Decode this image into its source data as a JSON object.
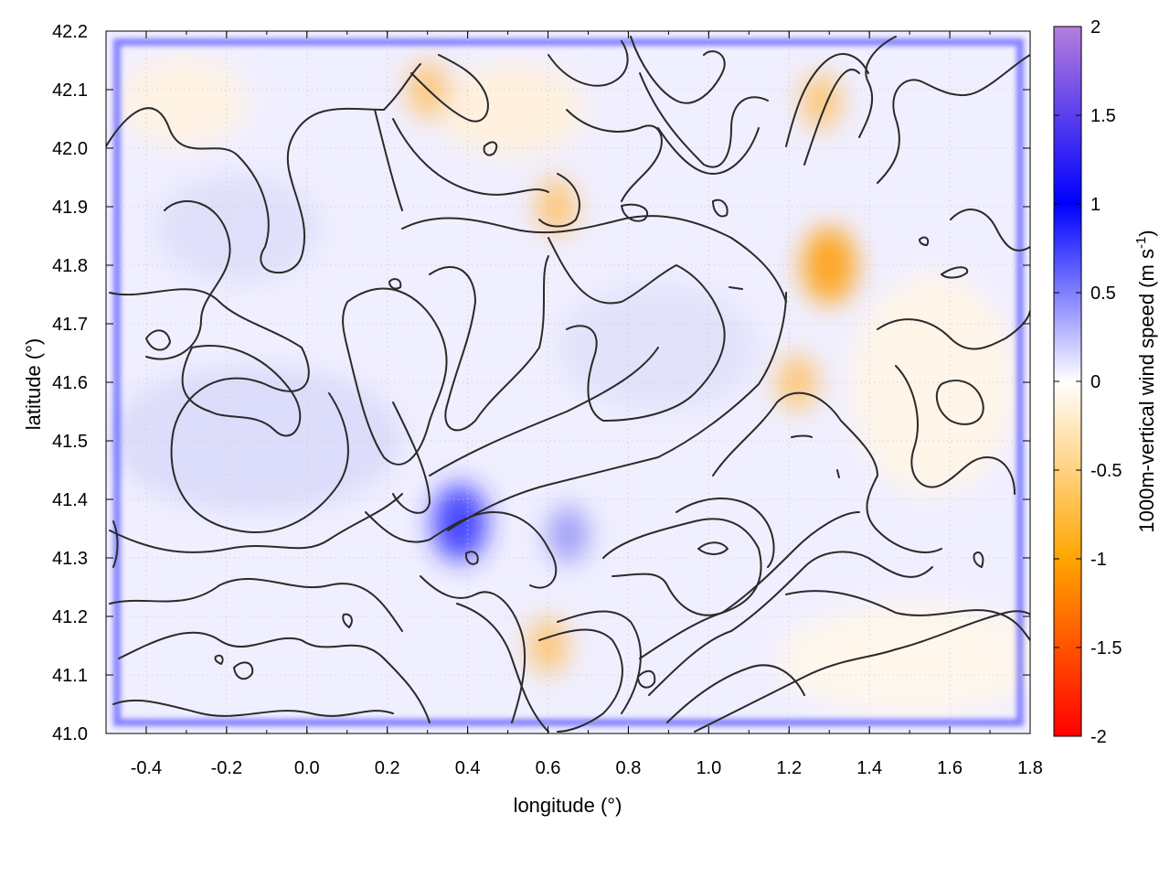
{
  "chart_data": {
    "type": "heatmap",
    "title": "",
    "xlabel": "longitude (°)",
    "ylabel": "latitude (°)",
    "colorbar_label": "1000m-vertical wind speed (m s-1)",
    "xlim": [
      -0.5,
      1.8
    ],
    "ylim": [
      41.0,
      42.2
    ],
    "x_ticks": [
      -0.4,
      -0.2,
      0.0,
      0.2,
      0.4,
      0.6,
      0.8,
      1.0,
      1.2,
      1.4,
      1.6,
      1.8
    ],
    "x_tick_labels": [
      "-0.4",
      "-0.2",
      "0.0",
      "0.2",
      "0.4",
      "0.6",
      "0.8",
      "1.0",
      "1.2",
      "1.4",
      "1.6",
      "1.8"
    ],
    "y_ticks": [
      41.0,
      41.1,
      41.2,
      41.3,
      41.4,
      41.5,
      41.6,
      41.7,
      41.8,
      41.9,
      42.0,
      42.1,
      42.2
    ],
    "y_tick_labels": [
      "41.0",
      "41.1",
      "41.2",
      "41.3",
      "41.4",
      "41.5",
      "41.6",
      "41.7",
      "41.8",
      "41.9",
      "42.0",
      "42.1",
      "42.2"
    ],
    "colorbar": {
      "range": [
        -2,
        2
      ],
      "ticks": [
        2,
        1.5,
        1,
        0.5,
        0,
        -0.5,
        -1,
        -1.5,
        -2
      ],
      "tick_labels": [
        "2",
        "1.5",
        "1",
        "0.5",
        "0",
        "-0.5",
        "-1",
        "-1.5",
        "-2"
      ],
      "colors": {
        "-2": "#ff0000",
        "-1": "#ffa500",
        "0": "#ffffff",
        "1": "#0000ff",
        "2": "#b57edc"
      }
    },
    "grid": true,
    "field_features": [
      {
        "kind": "updraft_boundary",
        "lon": [
          -0.48,
          1.78
        ],
        "lat": [
          41.02,
          42.18
        ],
        "value": 1.0
      },
      {
        "kind": "downdraft",
        "lon": 1.3,
        "lat": 41.8,
        "value": -1.0
      },
      {
        "kind": "downdraft",
        "lon": 1.22,
        "lat": 41.6,
        "value": -0.8
      },
      {
        "kind": "downdraft",
        "lon": 0.3,
        "lat": 42.1,
        "value": -0.8
      },
      {
        "kind": "downdraft",
        "lon": 1.28,
        "lat": 42.08,
        "value": -0.8
      },
      {
        "kind": "downdraft",
        "lon": 0.62,
        "lat": 41.9,
        "value": -0.5
      },
      {
        "kind": "downdraft",
        "lon": 0.6,
        "lat": 41.15,
        "value": -0.5
      },
      {
        "kind": "updraft",
        "lon": 0.38,
        "lat": 41.36,
        "value": 1.0
      },
      {
        "kind": "updraft",
        "lon": 0.65,
        "lat": 41.34,
        "value": 0.5
      }
    ]
  }
}
